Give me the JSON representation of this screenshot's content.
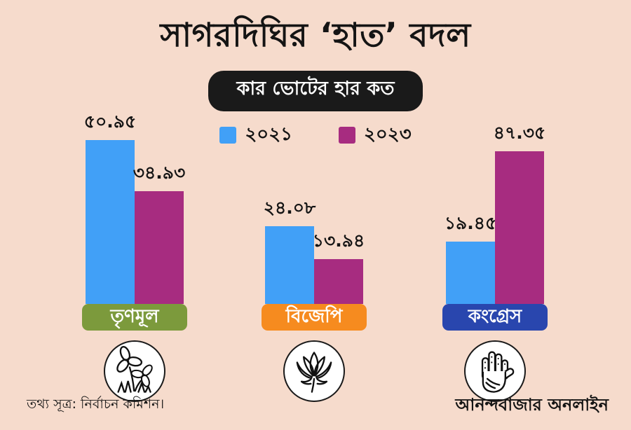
{
  "title": "সাগরদিঘির ‘হাত’ বদল",
  "subtitle": "কার ভোটের হার কত",
  "legend": [
    {
      "label": "২০২১",
      "year": 2021,
      "color": "#41A0F7"
    },
    {
      "label": "২০২৩",
      "year": 2023,
      "color": "#A72C80"
    }
  ],
  "chart_data": {
    "type": "bar",
    "title": "সাগরদিঘির ‘হাত’ বদল",
    "subtitle": "কার ভোটের হার কত",
    "categories": [
      "তৃণমূল",
      "বিজেপি",
      "কংগ্রেস"
    ],
    "series": [
      {
        "name": "২০২১",
        "year": 2021,
        "color": "#41A0F7",
        "values": [
          50.95,
          24.08,
          19.45
        ],
        "value_labels": [
          "৫০.৯৫",
          "২৪.০৮",
          "১৯.৪৫"
        ]
      },
      {
        "name": "২০২৩",
        "year": 2023,
        "color": "#A72C80",
        "values": [
          34.93,
          13.94,
          47.35
        ],
        "value_labels": [
          "৩৪.৯৩",
          "১৩.৯৪",
          "৪৭.৩৫"
        ]
      }
    ],
    "xlabel": "",
    "ylabel": "",
    "ylim": [
      0,
      55
    ],
    "grid": false,
    "legend_position": "top",
    "value_labels_shown": true
  },
  "groups": [
    {
      "party": "তৃণমূল",
      "label_color": "#7C9A3C",
      "symbol": "twin-flowers-icon",
      "bars": [
        {
          "year": "২০২১",
          "label": "৫০.৯৫",
          "value": 50.95
        },
        {
          "year": "২০২৩",
          "label": "৩৪.৯৩",
          "value": 34.93
        }
      ]
    },
    {
      "party": "বিজেপি",
      "label_color": "#F68B1F",
      "symbol": "lotus-icon",
      "bars": [
        {
          "year": "২০২১",
          "label": "২৪.০৮",
          "value": 24.08
        },
        {
          "year": "২০২৩",
          "label": "১৩.৯৪",
          "value": 13.94
        }
      ]
    },
    {
      "party": "কংগ্রেস",
      "label_color": "#2946AE",
      "symbol": "hand-icon",
      "bars": [
        {
          "year": "২০২১",
          "label": "১৯.৪৫",
          "value": 19.45
        },
        {
          "year": "২০২৩",
          "label": "৪৭.৩৫",
          "value": 47.35
        }
      ]
    }
  ],
  "footer": {
    "source": "তথ্য সূত্র: নির্বাচন কমিশন।",
    "brand": "আনন্দবাজার অনলাইন"
  },
  "colors": {
    "background": "#F6DBCC",
    "pill_bg": "#1A1A1A",
    "pill_text": "#FFFFFF",
    "bar_2021": "#41A0F7",
    "bar_2023": "#A72C80",
    "tmc_green": "#7C9A3C",
    "bjp_orange": "#F68B1F",
    "congress_blue": "#2946AE",
    "text": "#141414"
  }
}
